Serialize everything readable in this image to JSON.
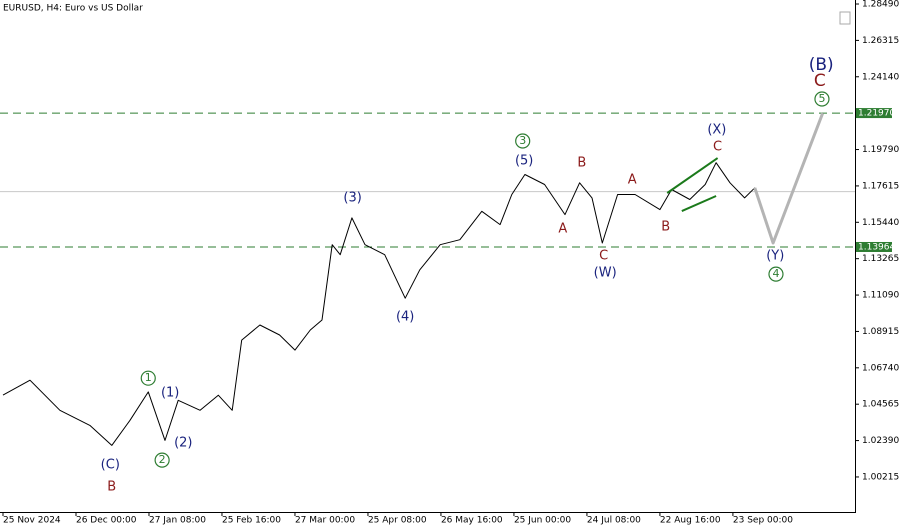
{
  "chart_data": {
    "type": "line",
    "title": "EURUSD, H4:  Euro vs US Dollar",
    "xlim": [
      0,
      11.7
    ],
    "ylim": [
      0.9812,
      1.2873
    ],
    "xticks": [
      {
        "value": 0,
        "label": "25 Nov 2024"
      },
      {
        "value": 1,
        "label": "26 Dec 00:00"
      },
      {
        "value": 2,
        "label": "27 Jan 08:00"
      },
      {
        "value": 3,
        "label": "25 Feb 16:00"
      },
      {
        "value": 4,
        "label": "27 Mar 00:00"
      },
      {
        "value": 5,
        "label": "25 Apr 08:00"
      },
      {
        "value": 6,
        "label": "26 May 16:00"
      },
      {
        "value": 7,
        "label": "25 Jun 00:00"
      },
      {
        "value": 8,
        "label": "24 Jul 08:00"
      },
      {
        "value": 9,
        "label": "22 Aug 16:00"
      },
      {
        "value": 10,
        "label": "23 Sep 00:00"
      }
    ],
    "yticks": [
      {
        "value": 1.2849,
        "label": "1.28490"
      },
      1.26315,
      {
        "value": 1.2414,
        "label": "1.24140"
      },
      {
        "value": 1.1979,
        "label": "1.19790"
      },
      1.17615,
      {
        "value": 1.1544,
        "label": "1.15440"
      },
      1.13265,
      {
        "value": 1.1109,
        "label": "1.11090"
      },
      1.08915,
      {
        "value": 1.0674,
        "label": "1.06740"
      },
      1.04565,
      {
        "value": 1.0239,
        "label": "1.02390"
      },
      1.00215
    ],
    "series": [
      {
        "color": "#000000",
        "x": [
          0,
          0.37,
          0.78,
          1.19,
          1.49,
          1.74,
          1.99,
          2.22,
          2.4,
          2.7,
          2.95,
          3.14,
          3.27,
          3.52,
          3.79,
          4.0,
          4.21,
          4.37,
          4.51,
          4.62,
          4.78,
          4.96,
          5.23,
          5.51,
          5.71,
          5.99,
          6.26,
          6.56,
          6.81,
          6.97,
          7.15,
          7.42,
          7.7,
          7.9,
          8.07,
          8.21,
          8.42,
          8.66,
          9.0,
          9.16,
          9.41,
          9.62,
          9.77,
          9.96,
          10.16,
          10.3
        ],
        "values": [
          1.0511,
          1.06,
          1.042,
          1.033,
          1.021,
          1.036,
          1.053,
          1.024,
          1.048,
          1.042,
          1.051,
          1.042,
          1.084,
          1.093,
          1.087,
          1.078,
          1.09,
          1.096,
          1.141,
          1.135,
          1.157,
          1.141,
          1.135,
          1.109,
          1.126,
          1.141,
          1.144,
          1.161,
          1.153,
          1.171,
          1.183,
          1.177,
          1.159,
          1.178,
          1.169,
          1.142,
          1.171,
          1.171,
          1.162,
          1.174,
          1.168,
          1.177,
          1.19,
          1.178,
          1.169,
          1.175
        ]
      },
      {
        "color": "#b4b4b4",
        "x": [
          10.3,
          10.55,
          11.23
        ],
        "values": [
          1.175,
          1.142,
          1.2197
        ]
      }
    ],
    "levels": [
      {
        "value": 1.2197,
        "label": "1.21970",
        "color": "#2e7d32",
        "dashed": true
      },
      {
        "value": 1.13964,
        "label": "1.13964",
        "color": "#2e7d32",
        "dashed": true
      },
      {
        "value": 1.1727,
        "color": "#c8c8c8",
        "dashed": false
      }
    ],
    "trendlines": [
      {
        "x": [
          9.1,
          9.79
        ],
        "values": [
          1.1719,
          1.1928
        ],
        "color": "#1b7a1b"
      },
      {
        "x": [
          9.3,
          9.77
        ],
        "values": [
          1.1611,
          1.1701
        ],
        "color": "#1b7a1b"
      }
    ],
    "annotations": [
      {
        "text": "(C)",
        "x": 1.47,
        "y": 1.0092,
        "color": "#1a237e"
      },
      {
        "text": "B",
        "x": 1.49,
        "y": 0.9961,
        "color": "#8b1a1a"
      },
      {
        "text": "1",
        "x": 1.99,
        "y": 1.0612,
        "color": "#2e7d32",
        "circled": true
      },
      {
        "text": "(1)",
        "x": 2.29,
        "y": 1.0523,
        "color": "#1a237e"
      },
      {
        "text": "2",
        "x": 2.18,
        "y": 1.0122,
        "color": "#2e7d32",
        "circled": true
      },
      {
        "text": "(2)",
        "x": 2.47,
        "y": 1.0224,
        "color": "#1a237e"
      },
      {
        "text": "(3)",
        "x": 4.79,
        "y": 1.1689,
        "color": "#1a237e"
      },
      {
        "text": "(4)",
        "x": 5.51,
        "y": 1.0977,
        "color": "#1a237e"
      },
      {
        "text": "3",
        "x": 7.12,
        "y": 1.203,
        "color": "#2e7d32",
        "circled": true
      },
      {
        "text": "(5)",
        "x": 7.14,
        "y": 1.191,
        "color": "#1a237e"
      },
      {
        "text": "B",
        "x": 7.93,
        "y": 1.1898,
        "color": "#8b1a1a"
      },
      {
        "text": "A",
        "x": 7.67,
        "y": 1.1503,
        "color": "#8b1a1a"
      },
      {
        "text": "C",
        "x": 8.23,
        "y": 1.1342,
        "color": "#8b1a1a"
      },
      {
        "text": "(W)",
        "x": 8.25,
        "y": 1.124,
        "color": "#1a237e"
      },
      {
        "text": "A",
        "x": 8.62,
        "y": 1.1797,
        "color": "#8b1a1a"
      },
      {
        "text": "B",
        "x": 9.08,
        "y": 1.1515,
        "color": "#8b1a1a"
      },
      {
        "text": "(X)",
        "x": 9.78,
        "y": 1.2096,
        "color": "#1a237e"
      },
      {
        "text": "C",
        "x": 9.79,
        "y": 1.1994,
        "color": "#8b1a1a"
      },
      {
        "text": "(Y)",
        "x": 10.58,
        "y": 1.1342,
        "color": "#1a237e"
      },
      {
        "text": "4",
        "x": 10.59,
        "y": 1.1234,
        "color": "#2e7d32",
        "circled": true
      },
      {
        "text": "5",
        "x": 11.22,
        "y": 1.2281,
        "color": "#2e7d32",
        "circled": true
      },
      {
        "text": "C",
        "x": 11.19,
        "y": 1.2389,
        "color": "#8b1a1a",
        "big": true
      },
      {
        "text": "(B)",
        "x": 11.21,
        "y": 1.2484,
        "color": "#1a237e",
        "big": true
      }
    ]
  }
}
